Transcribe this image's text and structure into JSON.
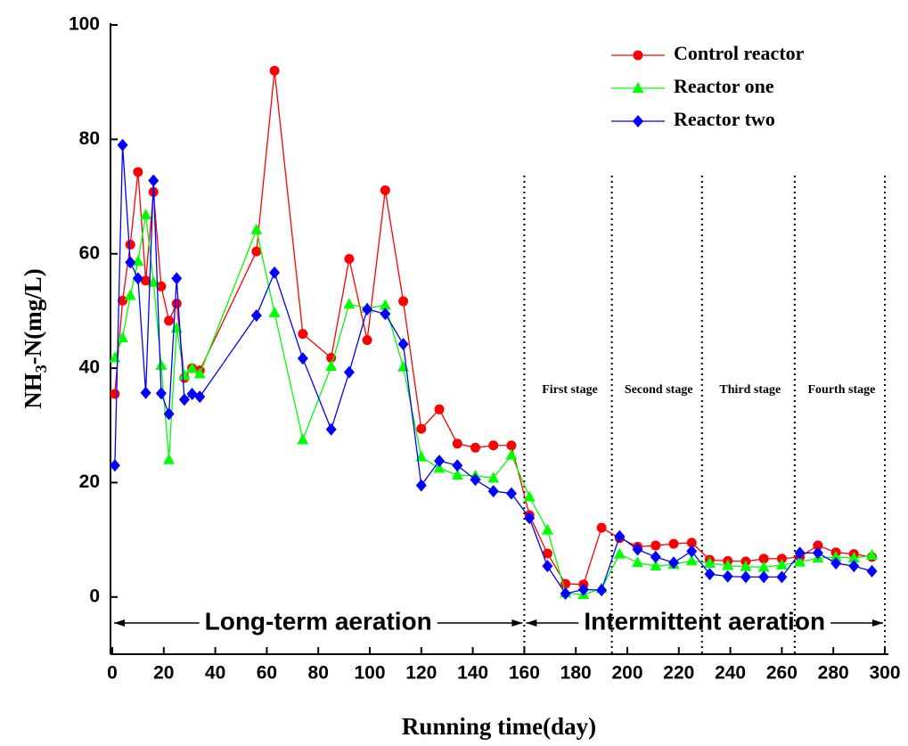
{
  "chart_data": {
    "type": "line",
    "x_label": "Running time(day)",
    "y_label": {
      "main": "NH",
      "sub": "3",
      "rest": "-N(mg/L)"
    },
    "xlim": [
      0,
      300
    ],
    "ylim": [
      -10,
      100
    ],
    "xticks": [
      0,
      20,
      40,
      60,
      80,
      100,
      120,
      140,
      160,
      180,
      200,
      220,
      240,
      260,
      280,
      300
    ],
    "yticks": [
      0,
      20,
      40,
      60,
      80,
      100
    ],
    "legend": "upper right",
    "x": [
      1,
      4,
      7,
      10,
      13,
      16,
      19,
      22,
      25,
      28,
      31,
      34,
      56,
      63,
      74,
      85,
      92,
      99,
      106,
      113,
      120,
      127,
      134,
      141,
      148,
      155,
      162,
      169,
      176,
      183,
      190,
      197,
      204,
      211,
      218,
      225,
      232,
      239,
      246,
      253,
      260,
      267,
      274,
      281,
      288,
      295
    ],
    "series": [
      {
        "name": "Control reactor",
        "color": "#ff0000",
        "marker": "circle",
        "values": [
          35.5,
          51.8,
          61.6,
          74.3,
          55.3,
          70.8,
          54.3,
          48.3,
          51.3,
          38.3,
          40.0,
          39.6,
          60.4,
          92.0,
          46.0,
          41.8,
          59.1,
          44.9,
          71.1,
          51.7,
          29.4,
          32.8,
          26.8,
          26.1,
          26.5,
          26.5,
          14.3,
          7.6,
          2.3,
          2.2,
          12.1,
          10.3,
          8.8,
          9.0,
          9.3,
          9.5,
          6.5,
          6.3,
          6.2,
          6.7,
          6.7,
          7.0,
          9.0,
          7.8,
          7.5,
          7.0
        ]
      },
      {
        "name": "Reactor one",
        "color": "#00ff00",
        "marker": "triangle",
        "values": [
          41.8,
          45.3,
          52.7,
          58.7,
          66.8,
          55.0,
          40.5,
          24.0,
          47.0,
          38.7,
          40.0,
          39.0,
          64.2,
          49.7,
          27.5,
          40.3,
          51.2,
          50.5,
          51.0,
          40.2,
          24.5,
          22.5,
          21.3,
          21.2,
          20.8,
          24.8,
          17.5,
          11.7,
          0.7,
          0.4,
          1.5,
          7.5,
          6.0,
          5.4,
          5.7,
          6.3,
          5.9,
          5.5,
          5.3,
          5.2,
          5.6,
          6.1,
          6.8,
          7.0,
          6.8,
          7.3
        ]
      },
      {
        "name": "Reactor two",
        "color": "#0000ff",
        "marker": "diamond",
        "values": [
          23.0,
          79.0,
          58.5,
          55.7,
          35.7,
          72.8,
          35.6,
          32.0,
          55.7,
          34.5,
          35.5,
          35.0,
          49.2,
          56.7,
          41.7,
          29.3,
          39.3,
          50.3,
          49.5,
          44.2,
          19.5,
          23.8,
          23.0,
          20.5,
          18.5,
          18.1,
          13.8,
          5.4,
          0.6,
          1.3,
          1.2,
          10.6,
          8.3,
          7.0,
          6.0,
          8.0,
          4.0,
          3.6,
          3.5,
          3.5,
          3.5,
          7.7,
          7.7,
          5.9,
          5.4,
          4.5
        ]
      }
    ],
    "dividers": [
      160,
      194,
      229,
      265,
      300
    ],
    "stages": [
      "First stage",
      "Second stage",
      "Third stage",
      "Fourth stage"
    ],
    "periods": [
      {
        "text": "Long-term aeration",
        "from": 0,
        "to": 160
      },
      {
        "text": "Intermittent aeration",
        "from": 160,
        "to": 300
      }
    ]
  }
}
